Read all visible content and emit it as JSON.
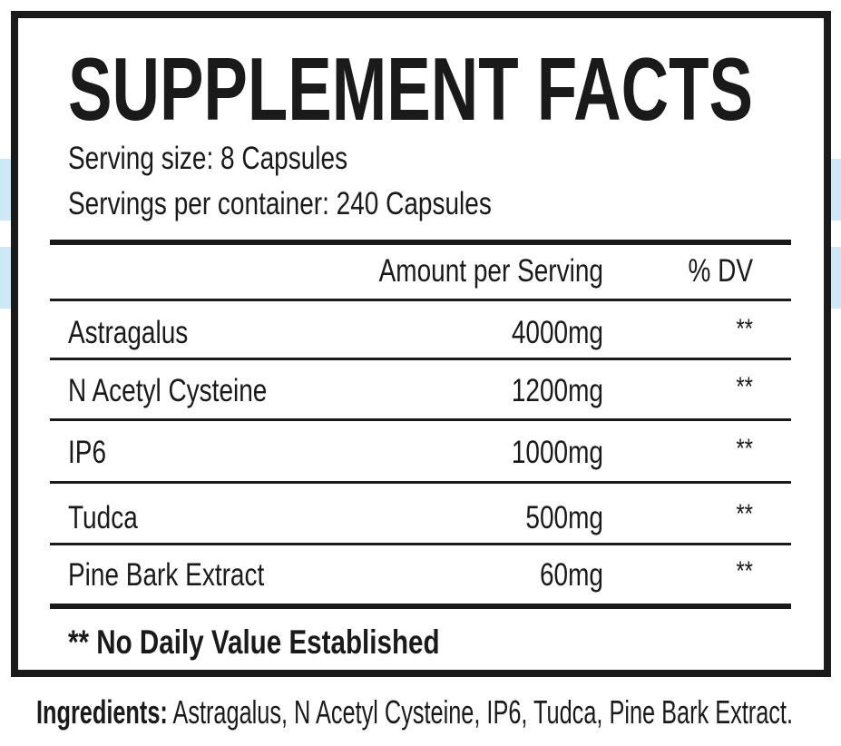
{
  "title": "SUPPLEMENT FACTS",
  "serving_size": "Serving size: 8 Capsules",
  "servings_per_container": "Servings per container: 240 Capsules",
  "table": {
    "header": [
      "Amount per Serving",
      "% DV"
    ],
    "rows": [
      [
        "Astragalus",
        "4000mg",
        "**"
      ],
      [
        "N Acetyl Cysteine",
        "1200mg",
        "**"
      ],
      [
        "IP6",
        "1000mg",
        "**"
      ],
      [
        "Tudca",
        "500mg",
        "**"
      ],
      [
        "Pine Bark Extract",
        "60mg",
        "**"
      ]
    ]
  },
  "footnote": "** No Daily Value Established",
  "ingredients": {
    "label": "Ingredients:",
    "text": "Astragalus, N Acetyl Cysteine, IP6, Tudca, Pine Bark Extract."
  }
}
